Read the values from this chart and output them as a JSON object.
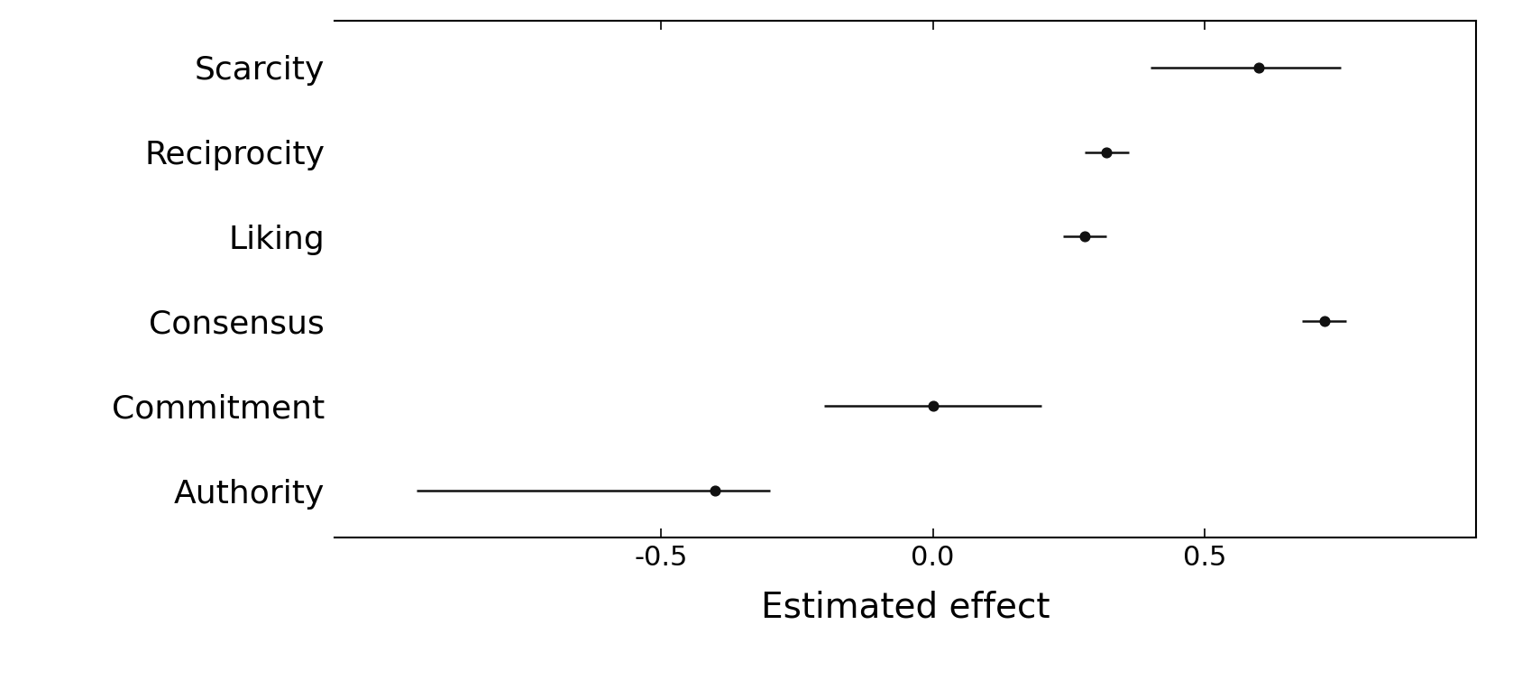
{
  "principles": [
    "Scarcity",
    "Reciprocity",
    "Liking",
    "Consensus",
    "Commitment",
    "Authority"
  ],
  "values": [
    0.6,
    0.32,
    0.28,
    0.72,
    0.0,
    -0.4
  ],
  "ci_low": [
    0.4,
    0.28,
    0.24,
    0.68,
    -0.2,
    -0.95
  ],
  "ci_high": [
    0.75,
    0.36,
    0.32,
    0.76,
    0.2,
    -0.3
  ],
  "xlabel": "Estimated effect",
  "xlim": [
    -1.1,
    1.0
  ],
  "xticks": [
    -0.5,
    0.0,
    0.5
  ],
  "xticklabels": [
    "-0.5",
    "0.0",
    "0.5"
  ],
  "background_color": "#ffffff",
  "dot_color": "#111111",
  "line_color": "#111111",
  "dot_size": 60,
  "line_width": 1.8,
  "xlabel_fontsize": 28,
  "tick_fontsize": 22,
  "label_fontsize": 26,
  "spine_linewidth": 1.5
}
